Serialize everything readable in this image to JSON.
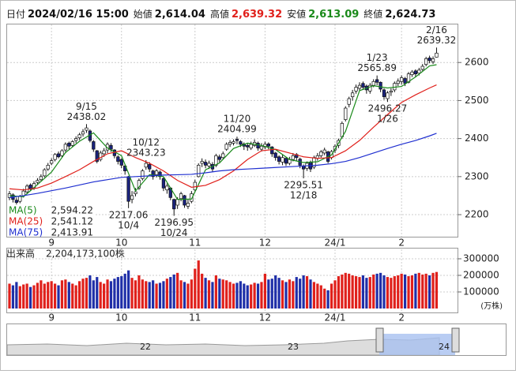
{
  "chart_data": {
    "type": "candlestick",
    "header": [
      {
        "label": "日付",
        "value": "2024/02/16 15:00"
      },
      {
        "label": "始値",
        "value": "2,614.04"
      },
      {
        "label": "高値",
        "value": "2,639.32",
        "color": "#e0201b"
      },
      {
        "label": "安値",
        "value": "2,613.09",
        "color": "#1a8a1a"
      },
      {
        "label": "終値",
        "value": "2,624.73"
      }
    ],
    "up_color": "#ffffff",
    "down_color": "#1a237e",
    "ylim": [
      2142,
      2700
    ],
    "yticks": [
      2200,
      2300,
      2400,
      2500,
      2600
    ],
    "grid": true,
    "xticks": [
      {
        "value": 12,
        "label": "9"
      },
      {
        "value": 32,
        "label": "10"
      },
      {
        "value": 53,
        "label": "11"
      },
      {
        "value": 73,
        "label": "12"
      },
      {
        "value": 93,
        "label": "24/1"
      },
      {
        "value": 112,
        "label": "2"
      }
    ],
    "open": [
      2245,
      2252,
      2238,
      2235,
      2250,
      2260,
      2278,
      2270,
      2285,
      2292,
      2302,
      2320,
      2335,
      2345,
      2360,
      2355,
      2370,
      2388,
      2382,
      2395,
      2402,
      2412,
      2422,
      2420,
      2392,
      2368,
      2345,
      2360,
      2370,
      2382,
      2370,
      2352,
      2345,
      2328,
      2300,
      2240,
      2255,
      2270,
      2295,
      2325,
      2332,
      2315,
      2305,
      2312,
      2295,
      2265,
      2270,
      2240,
      2225,
      2242,
      2250,
      2222,
      2235,
      2265,
      2300,
      2335,
      2338,
      2328,
      2332,
      2330,
      2352,
      2350,
      2372,
      2385,
      2388,
      2398,
      2392,
      2386,
      2382,
      2375,
      2382,
      2388,
      2372,
      2378,
      2386,
      2378,
      2362,
      2352,
      2338,
      2348,
      2335,
      2345,
      2358,
      2346,
      2328,
      2322,
      2338,
      2325,
      2348,
      2355,
      2362,
      2365,
      2350,
      2370,
      2382,
      2405,
      2450,
      2490,
      2510,
      2525,
      2532,
      2545,
      2538,
      2525,
      2540,
      2555,
      2548,
      2528,
      2505,
      2522,
      2528,
      2545,
      2550,
      2558,
      2548,
      2568,
      2578,
      2572,
      2582,
      2595,
      2612,
      2602,
      2614.04
    ],
    "high": [
      2262,
      2256,
      2245,
      2252,
      2268,
      2280,
      2282,
      2288,
      2296,
      2306,
      2322,
      2336,
      2348,
      2362,
      2366,
      2372,
      2390,
      2392,
      2396,
      2406,
      2415,
      2425,
      2438.02,
      2424,
      2396,
      2370,
      2368,
      2375,
      2390,
      2388,
      2372,
      2356,
      2348,
      2332,
      2302,
      2262,
      2270,
      2295,
      2320,
      2343.23,
      2338,
      2318,
      2320,
      2316,
      2298,
      2282,
      2272,
      2242,
      2246,
      2260,
      2252,
      2240,
      2262,
      2292,
      2335,
      2348,
      2345,
      2342,
      2338,
      2360,
      2358,
      2366,
      2390,
      2396,
      2398,
      2404.99,
      2396,
      2390,
      2388,
      2392,
      2398,
      2392,
      2388,
      2392,
      2390,
      2380,
      2365,
      2356,
      2358,
      2352,
      2352,
      2362,
      2362,
      2350,
      2332,
      2340,
      2342,
      2355,
      2362,
      2370,
      2376,
      2368,
      2370,
      2385,
      2400,
      2445,
      2485,
      2510,
      2528,
      2542,
      2548,
      2550,
      2542,
      2546,
      2556,
      2565.89,
      2550,
      2532,
      2525,
      2532,
      2550,
      2558,
      2566,
      2562,
      2575,
      2580,
      2582,
      2586,
      2596,
      2615,
      2618,
      2616,
      2639.32
    ],
    "low": [
      2238,
      2232,
      2225,
      2230,
      2245,
      2255,
      2262,
      2265,
      2278,
      2288,
      2298,
      2315,
      2330,
      2340,
      2348,
      2350,
      2365,
      2372,
      2378,
      2388,
      2396,
      2405,
      2415,
      2390,
      2365,
      2335,
      2340,
      2352,
      2362,
      2365,
      2348,
      2332,
      2322,
      2305,
      2217.06,
      2230,
      2248,
      2265,
      2290,
      2318,
      2312,
      2292,
      2298,
      2292,
      2262,
      2255,
      2238,
      2196.95,
      2215,
      2235,
      2218,
      2215,
      2230,
      2260,
      2298,
      2325,
      2322,
      2320,
      2312,
      2325,
      2338,
      2345,
      2368,
      2378,
      2382,
      2385,
      2378,
      2370,
      2368,
      2370,
      2378,
      2368,
      2366,
      2372,
      2372,
      2352,
      2342,
      2332,
      2330,
      2328,
      2330,
      2340,
      2342,
      2322,
      2295.51,
      2315,
      2312,
      2320,
      2342,
      2350,
      2356,
      2335,
      2345,
      2362,
      2375,
      2400,
      2445,
      2482,
      2500,
      2518,
      2525,
      2528,
      2518,
      2518,
      2535,
      2540,
      2522,
      2502,
      2496.27,
      2512,
      2522,
      2538,
      2542,
      2538,
      2545,
      2562,
      2562,
      2566,
      2578,
      2590,
      2598,
      2596,
      2613.09
    ],
    "close": [
      2255,
      2240,
      2232,
      2248,
      2262,
      2275,
      2268,
      2282,
      2290,
      2300,
      2318,
      2330,
      2342,
      2358,
      2352,
      2368,
      2385,
      2380,
      2392,
      2400,
      2410,
      2418,
      2428,
      2395,
      2372,
      2340,
      2362,
      2368,
      2385,
      2372,
      2355,
      2340,
      2330,
      2315,
      2235,
      2250,
      2260,
      2290,
      2315,
      2335,
      2320,
      2300,
      2315,
      2300,
      2270,
      2275,
      2245,
      2215,
      2240,
      2255,
      2225,
      2230,
      2255,
      2285,
      2330,
      2340,
      2330,
      2335,
      2320,
      2355,
      2345,
      2360,
      2385,
      2390,
      2392,
      2395,
      2385,
      2380,
      2378,
      2385,
      2390,
      2375,
      2380,
      2385,
      2380,
      2360,
      2350,
      2340,
      2350,
      2335,
      2345,
      2355,
      2350,
      2330,
      2320,
      2335,
      2320,
      2350,
      2355,
      2365,
      2370,
      2340,
      2366,
      2380,
      2395,
      2440,
      2480,
      2505,
      2520,
      2535,
      2540,
      2535,
      2528,
      2540,
      2550,
      2548,
      2530,
      2510,
      2520,
      2525,
      2545,
      2551,
      2560,
      2545,
      2570,
      2575,
      2570,
      2580,
      2590,
      2610,
      2605,
      2610,
      2624.73
    ],
    "annotations": [
      {
        "date": "9/15",
        "label": "2438.02"
      },
      {
        "date": "10/12",
        "label": "2343.23"
      },
      {
        "date": "11/20",
        "label": "2404.99"
      },
      {
        "date": "1/23",
        "label": "2565.89"
      },
      {
        "date": "2/16",
        "label": "2639.32"
      },
      {
        "date": "10/4",
        "label": "2217.06"
      },
      {
        "date": "10/24",
        "label": "2196.95"
      },
      {
        "date": "12/18",
        "label": "2295.51"
      },
      {
        "date": "1/26",
        "label": "2496.27"
      }
    ],
    "moving_averages": {
      "x": [
        0,
        4,
        8,
        12,
        16,
        20,
        24,
        28,
        32,
        36,
        40,
        44,
        48,
        52,
        56,
        60,
        64,
        68,
        72,
        76,
        80,
        84,
        88,
        92,
        96,
        100,
        104,
        108,
        112,
        116,
        120,
        122
      ],
      "series": [
        {
          "name": "MA(5)",
          "color": "#1a8a1a",
          "last_label": "2,594.22",
          "values": [
            2250,
            2247,
            2279,
            2312,
            2363,
            2393,
            2415,
            2375,
            2355,
            2262,
            2305,
            2300,
            2240,
            2241,
            2318,
            2336,
            2374,
            2388,
            2382,
            2371,
            2345,
            2337,
            2339,
            2357,
            2419,
            2526,
            2539,
            2533,
            2537,
            2562,
            2591,
            2594.22
          ]
        },
        {
          "name": "MA(25)",
          "color": "#e0201b",
          "last_label": "2,541.12",
          "values": [
            2268,
            2265,
            2270,
            2283,
            2300,
            2318,
            2340,
            2360,
            2368,
            2350,
            2335,
            2315,
            2290,
            2272,
            2277,
            2292,
            2315,
            2345,
            2368,
            2372,
            2362,
            2352,
            2348,
            2350,
            2368,
            2395,
            2430,
            2463,
            2495,
            2515,
            2533,
            2541.12
          ]
        },
        {
          "name": "MA(75)",
          "color": "#1f2fd0",
          "last_label": "2,413.91",
          "values": [
            2245,
            2250,
            2256,
            2263,
            2270,
            2278,
            2286,
            2292,
            2298,
            2300,
            2302,
            2304,
            2305,
            2306,
            2310,
            2315,
            2318,
            2320,
            2322,
            2324,
            2326,
            2328,
            2330,
            2334,
            2340,
            2350,
            2362,
            2374,
            2385,
            2395,
            2407,
            2413.91
          ]
        }
      ]
    },
    "volume": {
      "title": "出来高",
      "latest": "2,204,173,100株",
      "unit": "(万株)",
      "up_color": "#e0201b",
      "down_color": "#1f2fa8",
      "ylim": [
        0,
        357000
      ],
      "yticks": [
        100000,
        200000,
        300000
      ],
      "values": [
        150000,
        140000,
        160000,
        135000,
        145000,
        150000,
        130000,
        140000,
        155000,
        170000,
        150000,
        160000,
        165000,
        150000,
        140000,
        170000,
        175000,
        160000,
        150000,
        140000,
        165000,
        180000,
        185000,
        200000,
        170000,
        190000,
        160000,
        150000,
        175000,
        165000,
        180000,
        190000,
        195000,
        210000,
        230000,
        185000,
        170000,
        200000,
        175000,
        165000,
        160000,
        170000,
        150000,
        155000,
        165000,
        180000,
        190000,
        205000,
        215000,
        170000,
        160000,
        150000,
        175000,
        240000,
        290000,
        210000,
        185000,
        170000,
        160000,
        200000,
        180000,
        175000,
        170000,
        160000,
        150000,
        155000,
        165000,
        150000,
        140000,
        145000,
        155000,
        150000,
        160000,
        210000,
        175000,
        180000,
        200000,
        185000,
        170000,
        160000,
        175000,
        165000,
        190000,
        180000,
        200000,
        195000,
        175000,
        160000,
        150000,
        140000,
        120000,
        110000,
        150000,
        170000,
        195000,
        205000,
        215000,
        210000,
        200000,
        195000,
        190000,
        200000,
        185000,
        190000,
        205000,
        210000,
        215000,
        200000,
        190000,
        185000,
        195000,
        200000,
        210000,
        205000,
        195000,
        200000,
        210000,
        215000,
        205000,
        210000,
        200000,
        215000,
        220417.31
      ]
    },
    "navigator": {
      "labels": [
        "22",
        "23",
        "24"
      ]
    }
  }
}
